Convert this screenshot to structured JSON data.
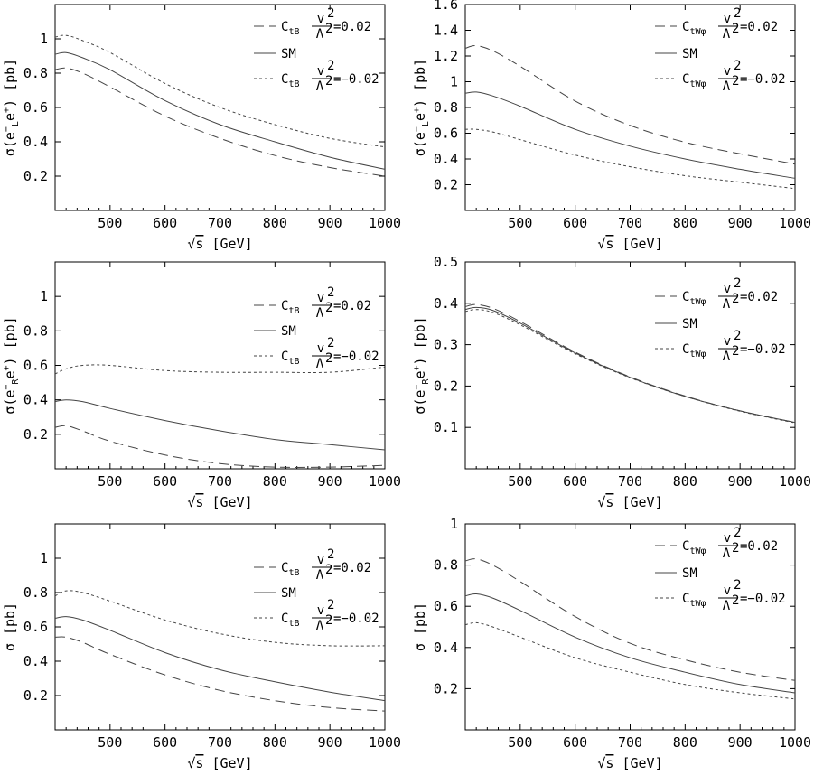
{
  "chart_data": [
    {
      "type": "line",
      "xlabel": "√s [GeV]",
      "ylabel": "σ(e⁻_L e⁺) [pb]",
      "xlim": [
        400,
        1000
      ],
      "ylim": [
        0,
        1.2
      ],
      "xticks": [
        500,
        600,
        700,
        800,
        900,
        1000
      ],
      "yticks": [
        0.2,
        0.4,
        0.6,
        0.8,
        1
      ],
      "ytick_labels": [
        "0.2",
        "0.4",
        "0.6",
        "0.8",
        "1"
      ],
      "legend_coef": "tB",
      "x": [
        400,
        420,
        450,
        500,
        600,
        700,
        800,
        900,
        1000
      ],
      "series": [
        {
          "name": "C_tB v²/Λ² = 0.02",
          "dash": "long",
          "values": [
            0.82,
            0.83,
            0.8,
            0.72,
            0.55,
            0.42,
            0.32,
            0.25,
            0.2
          ]
        },
        {
          "name": "SM",
          "dash": "solid",
          "values": [
            0.91,
            0.92,
            0.89,
            0.82,
            0.64,
            0.5,
            0.4,
            0.31,
            0.24
          ]
        },
        {
          "name": "C_tB v²/Λ² = −0.02",
          "dash": "short",
          "values": [
            1.01,
            1.02,
            0.99,
            0.92,
            0.74,
            0.6,
            0.5,
            0.42,
            0.37
          ]
        }
      ]
    },
    {
      "type": "line",
      "xlabel": "√s [GeV]",
      "ylabel": "σ(e⁻_L e⁺) [pb]",
      "xlim": [
        400,
        1000
      ],
      "ylim": [
        0,
        1.6
      ],
      "xticks": [
        500,
        600,
        700,
        800,
        900,
        1000
      ],
      "yticks": [
        0.2,
        0.4,
        0.6,
        0.8,
        1,
        1.2,
        1.4,
        1.6
      ],
      "ytick_labels": [
        "0.2",
        "0.4",
        "0.6",
        "0.8",
        "1",
        "1.2",
        "1.4",
        "1.6"
      ],
      "legend_coef": "tWφ",
      "x": [
        400,
        420,
        450,
        500,
        600,
        700,
        800,
        900,
        1000
      ],
      "series": [
        {
          "name": "C_tWφ v²/Λ² = 0.02",
          "dash": "long",
          "values": [
            1.26,
            1.28,
            1.24,
            1.12,
            0.85,
            0.66,
            0.53,
            0.44,
            0.36
          ]
        },
        {
          "name": "SM",
          "dash": "solid",
          "values": [
            0.91,
            0.92,
            0.89,
            0.81,
            0.63,
            0.5,
            0.4,
            0.32,
            0.25
          ]
        },
        {
          "name": "C_tWφ v²/Λ² = −0.02",
          "dash": "short",
          "values": [
            0.63,
            0.63,
            0.61,
            0.55,
            0.43,
            0.34,
            0.27,
            0.22,
            0.17
          ]
        }
      ]
    },
    {
      "type": "line",
      "xlabel": "√s [GeV]",
      "ylabel": "σ(e⁻_R e⁺) [pb]",
      "xlim": [
        400,
        1000
      ],
      "ylim": [
        0,
        1.2
      ],
      "xticks": [
        500,
        600,
        700,
        800,
        900,
        1000
      ],
      "yticks": [
        0.2,
        0.4,
        0.6,
        0.8,
        1
      ],
      "ytick_labels": [
        "0.2",
        "0.4",
        "0.6",
        "0.8",
        "1"
      ],
      "legend_coef": "tB",
      "x": [
        400,
        420,
        450,
        500,
        600,
        700,
        800,
        900,
        1000
      ],
      "series": [
        {
          "name": "C_tB v²/Λ² = 0.02",
          "dash": "long",
          "values": [
            0.24,
            0.25,
            0.22,
            0.16,
            0.08,
            0.03,
            0.01,
            0.01,
            0.02
          ]
        },
        {
          "name": "SM",
          "dash": "solid",
          "values": [
            0.39,
            0.4,
            0.39,
            0.35,
            0.28,
            0.22,
            0.17,
            0.14,
            0.11
          ]
        },
        {
          "name": "C_tB v²/Λ² = −0.02",
          "dash": "short",
          "values": [
            0.55,
            0.58,
            0.6,
            0.6,
            0.57,
            0.56,
            0.56,
            0.56,
            0.59
          ]
        }
      ]
    },
    {
      "type": "line",
      "xlabel": "√s [GeV]",
      "ylabel": "σ(e⁻_R e⁺) [pb]",
      "xlim": [
        400,
        1000
      ],
      "ylim": [
        0,
        0.5
      ],
      "xticks": [
        500,
        600,
        700,
        800,
        900,
        1000
      ],
      "yticks": [
        0.1,
        0.2,
        0.3,
        0.4,
        0.5
      ],
      "ytick_labels": [
        "0.1",
        "0.2",
        "0.3",
        "0.4",
        "0.5"
      ],
      "legend_coef": "tWφ",
      "x": [
        400,
        420,
        450,
        500,
        600,
        700,
        800,
        900,
        1000
      ],
      "series": [
        {
          "name": "C_tWφ v²/Λ² = 0.02",
          "dash": "long",
          "values": [
            0.392,
            0.397,
            0.388,
            0.356,
            0.282,
            0.222,
            0.176,
            0.14,
            0.112
          ]
        },
        {
          "name": "SM",
          "dash": "solid",
          "values": [
            0.385,
            0.39,
            0.383,
            0.352,
            0.28,
            0.221,
            0.175,
            0.14,
            0.112
          ]
        },
        {
          "name": "C_tWφ v²/Λ² = −0.02",
          "dash": "short",
          "values": [
            0.38,
            0.385,
            0.378,
            0.348,
            0.278,
            0.22,
            0.175,
            0.139,
            0.111
          ]
        }
      ]
    },
    {
      "type": "line",
      "xlabel": "√s [GeV]",
      "ylabel": "σ [pb]",
      "xlim": [
        400,
        1000
      ],
      "ylim": [
        0,
        1.2
      ],
      "xticks": [
        500,
        600,
        700,
        800,
        900,
        1000
      ],
      "yticks": [
        0.2,
        0.4,
        0.6,
        0.8,
        1
      ],
      "ytick_labels": [
        "0.2",
        "0.4",
        "0.6",
        "0.8",
        "1"
      ],
      "legend_coef": "tB",
      "x": [
        400,
        420,
        450,
        500,
        600,
        700,
        800,
        900,
        1000
      ],
      "series": [
        {
          "name": "C_tB v²/Λ² = 0.02",
          "dash": "long",
          "values": [
            0.54,
            0.54,
            0.51,
            0.44,
            0.32,
            0.23,
            0.17,
            0.13,
            0.11
          ]
        },
        {
          "name": "SM",
          "dash": "solid",
          "values": [
            0.65,
            0.66,
            0.64,
            0.58,
            0.45,
            0.35,
            0.28,
            0.22,
            0.17
          ]
        },
        {
          "name": "C_tB v²/Λ² = −0.02",
          "dash": "short",
          "values": [
            0.78,
            0.81,
            0.8,
            0.75,
            0.64,
            0.56,
            0.51,
            0.49,
            0.49
          ]
        }
      ]
    },
    {
      "type": "line",
      "xlabel": "√s [GeV]",
      "ylabel": "σ [pb]",
      "xlim": [
        400,
        1000
      ],
      "ylim": [
        0,
        1
      ],
      "xticks": [
        500,
        600,
        700,
        800,
        900,
        1000
      ],
      "yticks": [
        0.2,
        0.4,
        0.6,
        0.8,
        1
      ],
      "ytick_labels": [
        "0.2",
        "0.4",
        "0.6",
        "0.8",
        "1"
      ],
      "legend_coef": "tWφ",
      "x": [
        400,
        420,
        450,
        500,
        600,
        700,
        800,
        900,
        1000
      ],
      "series": [
        {
          "name": "C_tWφ v²/Λ² = 0.02",
          "dash": "long",
          "values": [
            0.82,
            0.83,
            0.8,
            0.72,
            0.55,
            0.42,
            0.34,
            0.28,
            0.24
          ]
        },
        {
          "name": "SM",
          "dash": "solid",
          "values": [
            0.65,
            0.66,
            0.64,
            0.58,
            0.45,
            0.35,
            0.28,
            0.22,
            0.18
          ]
        },
        {
          "name": "C_tWφ v²/Λ² = −0.02",
          "dash": "short",
          "values": [
            0.51,
            0.52,
            0.5,
            0.45,
            0.35,
            0.28,
            0.22,
            0.18,
            0.15
          ]
        }
      ]
    }
  ],
  "legend_text": {
    "C": "C",
    "v2": "v",
    "L2": "Λ",
    "sup2": "2",
    "val_pos": "=0.02",
    "val_neg": "=−0.02",
    "sm": "SM"
  },
  "axis_text": {
    "sigma": "σ",
    "pb": "[pb]",
    "sqrt": "√",
    "s": "s",
    "gev": "[GeV]",
    "open": "(",
    "close": ")",
    "e": "e",
    "minus": "−",
    "plus": "+",
    "sub_L": "L",
    "sub_R": "R"
  }
}
